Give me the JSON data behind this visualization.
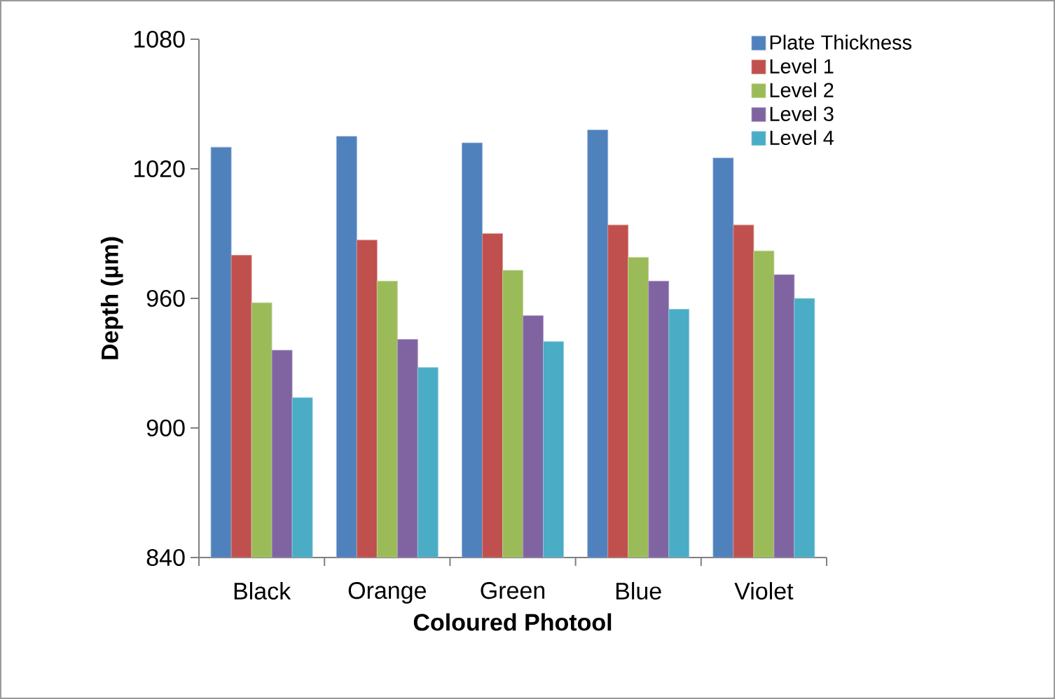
{
  "chart_data": {
    "type": "bar",
    "xlabel": "Coloured Photool",
    "ylabel": "Depth (µm)",
    "categories": [
      "Black",
      "Orange",
      "Green",
      "Blue",
      "Violet"
    ],
    "series": [
      {
        "name": "Plate Thickness",
        "color": "#4f81bd",
        "values": [
          1030,
          1035,
          1032,
          1038,
          1025
        ]
      },
      {
        "name": "Level 1",
        "color": "#c0504d",
        "values": [
          980,
          987,
          990,
          994,
          994
        ]
      },
      {
        "name": "Level 2",
        "color": "#9bbb59",
        "values": [
          958,
          968,
          973,
          979,
          982
        ]
      },
      {
        "name": "Level 3",
        "color": "#8064a2",
        "values": [
          936,
          941,
          952,
          968,
          971
        ]
      },
      {
        "name": "Level 4",
        "color": "#4bacc6",
        "values": [
          914,
          928,
          940,
          955,
          960
        ]
      }
    ],
    "ylim": [
      840,
      1080
    ],
    "yticks": [
      840,
      900,
      960,
      1020,
      1080
    ],
    "legend": "top right",
    "grid": false
  }
}
